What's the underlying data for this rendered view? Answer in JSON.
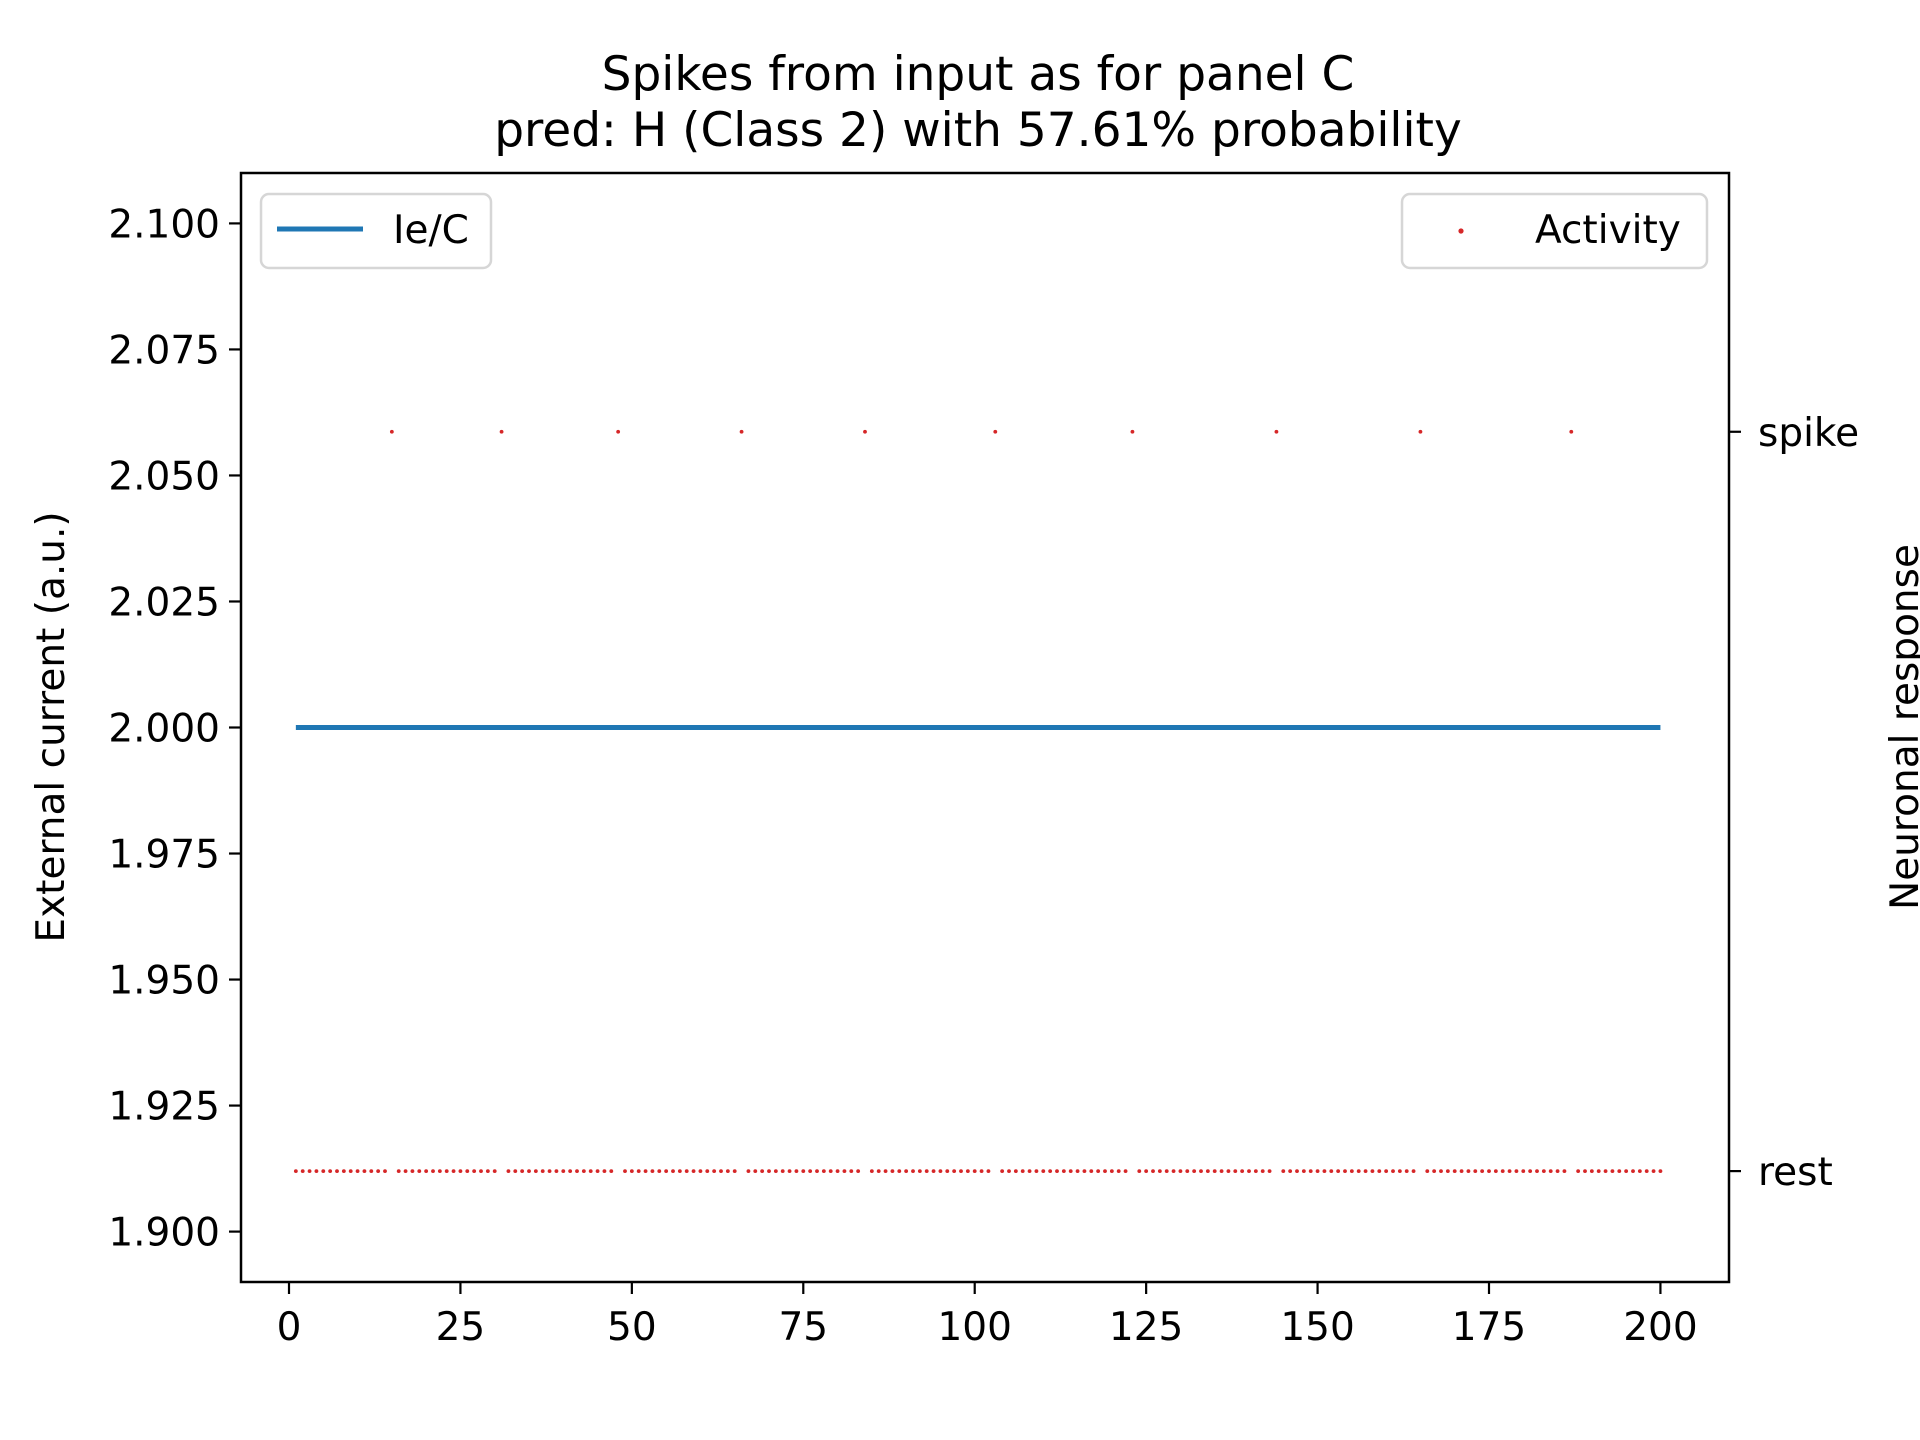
{
  "chart_data": {
    "type": "line",
    "title": "Spikes from input as for panel C",
    "subtitle": "pred: H (Class 2) with 57.61% probability",
    "ylabel": "External current (a.u.)",
    "y2label": "Neuronal response",
    "xlim": [
      -7,
      210
    ],
    "ylim": [
      1.89,
      2.11
    ],
    "xticks": [
      0,
      25,
      50,
      75,
      100,
      125,
      150,
      175,
      200
    ],
    "xtick_labels": [
      "0",
      "25",
      "50",
      "75",
      "100",
      "125",
      "150",
      "175",
      "200"
    ],
    "yticks": [
      1.9,
      1.925,
      1.95,
      1.975,
      2.0,
      2.025,
      2.05,
      2.075,
      2.1
    ],
    "ytick_labels": [
      "1.900",
      "1.925",
      "1.950",
      "1.975",
      "2.000",
      "2.025",
      "2.050",
      "2.075",
      "2.100"
    ],
    "y2ticks": [
      0,
      1
    ],
    "y2tick_labels": [
      "rest",
      "spike"
    ],
    "y2lim": [
      -0.15,
      1.35
    ],
    "grid": false,
    "series": [
      {
        "name": "Ie/C",
        "type": "line",
        "color": "#1f77b4",
        "x": [
          1,
          200
        ],
        "y": [
          2.0,
          2.0
        ],
        "legend": "top-left"
      },
      {
        "name": "Activity",
        "type": "scatter",
        "color": "#d62728",
        "axis": "right",
        "t_start": 1,
        "t_end": 200,
        "spike_times": [
          15,
          31,
          48,
          66,
          84,
          103,
          123,
          144,
          165,
          187
        ],
        "legend": "top-right"
      }
    ]
  }
}
